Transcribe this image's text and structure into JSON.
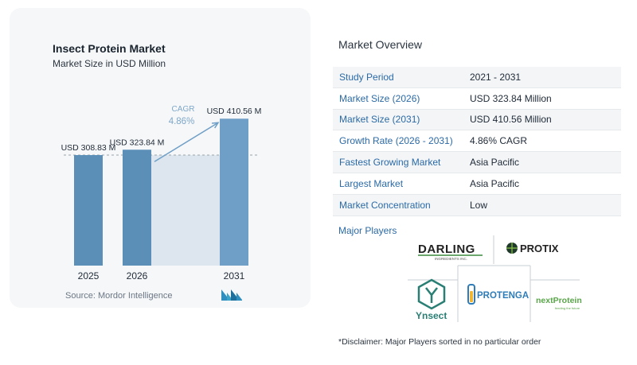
{
  "chart": {
    "title": "Insect Protein Market",
    "subtitle": "Market Size in USD Million",
    "source_label": "Source:",
    "source_name": "Mordor Intelligence"
  },
  "chart_data": {
    "type": "bar",
    "title": "Insect Protein Market",
    "subtitle": "Market Size in USD Million",
    "categories": [
      "2025",
      "2026",
      "2031"
    ],
    "values": [
      308.83,
      323.84,
      410.56
    ],
    "value_labels": [
      "USD 308.83 M",
      "USD 323.84 M",
      "USD 410.56 M"
    ],
    "cagr_label": "CAGR",
    "cagr_value": "4.86%",
    "reference_line_value": 308.83,
    "ylim": [
      0,
      420
    ],
    "grid": false,
    "colors": {
      "bar": "#5b8fb8",
      "bar_light": "#6f9fc6",
      "band": "#dde6ee",
      "arrow": "#6f9fc6",
      "cagr": "#7ea7c9"
    }
  },
  "overview": {
    "title": "Market Overview",
    "rows": [
      {
        "key": "Study Period",
        "value": "2021 - 2031"
      },
      {
        "key": "Market Size (2026)",
        "value": "USD 323.84 Million"
      },
      {
        "key": "Market Size (2031)",
        "value": "USD 410.56 Million"
      },
      {
        "key": "Growth Rate (2026 - 2031)",
        "value": "4.86% CAGR"
      },
      {
        "key": "Fastest Growing Market",
        "value": "Asia Pacific"
      },
      {
        "key": "Largest Market",
        "value": "Asia Pacific"
      },
      {
        "key": "Market Concentration",
        "value": "Low"
      }
    ]
  },
  "players": {
    "label": "Major Players",
    "logos": {
      "darling": "DARLING",
      "darling_sub": "INGREDIENTS INC.",
      "protix": "PROTIX",
      "ynsect": "Ynsect",
      "protenga": "PROTENGA",
      "nextprotein": "nextProtein",
      "nextprotein_sub": "feeding the future"
    }
  },
  "disclaimer": "*Disclaimer: Major Players sorted in no particular order"
}
